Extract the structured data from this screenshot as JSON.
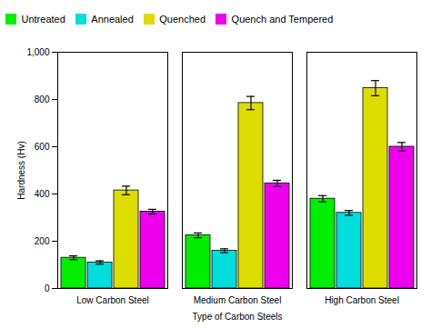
{
  "chart_data": {
    "type": "bar",
    "categories": [
      "Low Carbon Steel",
      "Medium Carbon Steel",
      "High Carbon Steel"
    ],
    "series": [
      {
        "name": "Untreated",
        "color": "#00ee00",
        "values": [
          130,
          225,
          380
        ],
        "errors": [
          8,
          10,
          13
        ]
      },
      {
        "name": "Annealed",
        "color": "#00dddd",
        "values": [
          110,
          160,
          320
        ],
        "errors": [
          7,
          8,
          10
        ]
      },
      {
        "name": "Quenched",
        "color": "#dddd00",
        "values": [
          415,
          785,
          848
        ],
        "errors": [
          18,
          28,
          32
        ]
      },
      {
        "name": "Quench and Tempered",
        "color": "#ee00ee",
        "values": [
          325,
          445,
          600
        ],
        "errors": [
          10,
          13,
          18
        ]
      }
    ],
    "xlabel": "Type of Carbon Steels",
    "ylabel": "Hardness (Hv)",
    "ylim": [
      0,
      1000
    ],
    "yticks": [
      0,
      200,
      400,
      600,
      800,
      1000
    ],
    "legend": "upper left",
    "grid": false
  }
}
